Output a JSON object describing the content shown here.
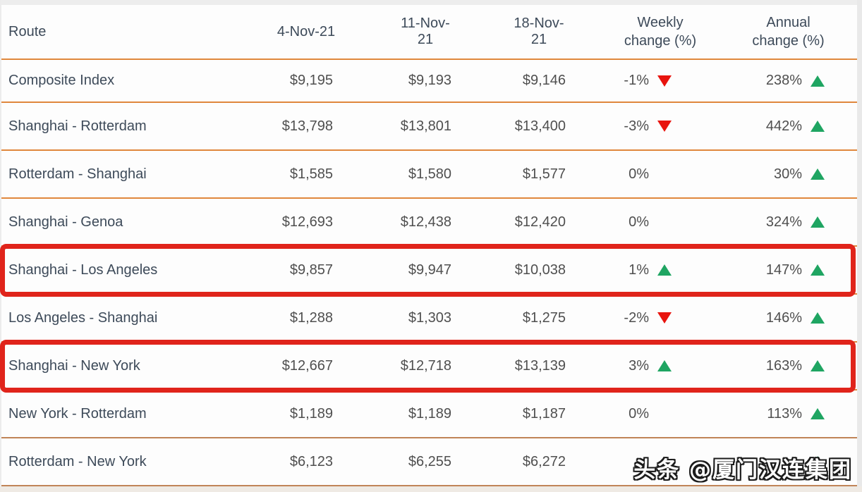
{
  "table": {
    "headers": {
      "route": "Route",
      "d1": "4-Nov-21",
      "d2": "11-Nov-21",
      "d3": "18-Nov-21",
      "weekly_line1": "Weekly",
      "weekly_line2": "change (%)",
      "annual_line1": "Annual",
      "annual_line2": "change (%)"
    },
    "rows": [
      {
        "route": "Composite Index",
        "v1": "$9,195",
        "v2": "$9,193",
        "v3": "$9,146",
        "weekly": "-1%",
        "weekly_dir": "down",
        "annual": "238%",
        "annual_dir": "up",
        "highlighted": false
      },
      {
        "route": "Shanghai - Rotterdam",
        "v1": "$13,798",
        "v2": "$13,801",
        "v3": "$13,400",
        "weekly": "-3%",
        "weekly_dir": "down",
        "annual": "442%",
        "annual_dir": "up",
        "highlighted": false
      },
      {
        "route": "Rotterdam - Shanghai",
        "v1": "$1,585",
        "v2": "$1,580",
        "v3": "$1,577",
        "weekly": "0%",
        "weekly_dir": "none",
        "annual": "30%",
        "annual_dir": "up",
        "highlighted": false
      },
      {
        "route": "Shanghai - Genoa",
        "v1": "$12,693",
        "v2": "$12,438",
        "v3": "$12,420",
        "weekly": "0%",
        "weekly_dir": "none",
        "annual": "324%",
        "annual_dir": "up",
        "highlighted": false
      },
      {
        "route": "Shanghai - Los Angeles",
        "v1": "$9,857",
        "v2": "$9,947",
        "v3": "$10,038",
        "weekly": "1%",
        "weekly_dir": "up",
        "annual": "147%",
        "annual_dir": "up",
        "highlighted": true
      },
      {
        "route": "Los Angeles - Shanghai",
        "v1": "$1,288",
        "v2": "$1,303",
        "v3": "$1,275",
        "weekly": "-2%",
        "weekly_dir": "down",
        "annual": "146%",
        "annual_dir": "up",
        "highlighted": false
      },
      {
        "route": "Shanghai - New York",
        "v1": "$12,667",
        "v2": "$12,718",
        "v3": "$13,139",
        "weekly": "3%",
        "weekly_dir": "up",
        "annual": "163%",
        "annual_dir": "up",
        "highlighted": true
      },
      {
        "route": "New York - Rotterdam",
        "v1": "$1,189",
        "v2": "$1,189",
        "v3": "$1,187",
        "weekly": "0%",
        "weekly_dir": "none",
        "annual": "113%",
        "annual_dir": "up",
        "highlighted": false
      },
      {
        "route": "Rotterdam - New York",
        "v1": "$6,123",
        "v2": "$6,255",
        "v3": "$6,272",
        "weekly": "",
        "weekly_dir": "none",
        "annual": "",
        "annual_dir": "up",
        "highlighted": false
      }
    ]
  },
  "watermark": {
    "text": "头条 @厦门汉连集团"
  },
  "colors": {
    "divider_orange": "#e0873c",
    "divider_brown": "#c08457",
    "highlight_red": "#e0241b",
    "triangle_up_green": "#1fa562",
    "triangle_down_red": "#e8140e",
    "header_text": "#3d4a59",
    "value_text": "#4f4f4f"
  },
  "chart_data": {
    "type": "table",
    "title": "Container freight rates by route",
    "columns": [
      "Route",
      "4-Nov-21",
      "11-Nov-21",
      "18-Nov-21",
      "Weekly change (%)",
      "Annual change (%)"
    ],
    "rows": [
      [
        "Composite Index",
        9195,
        9193,
        9146,
        "-1%",
        "238%"
      ],
      [
        "Shanghai - Rotterdam",
        13798,
        13801,
        13400,
        "-3%",
        "442%"
      ],
      [
        "Rotterdam - Shanghai",
        1585,
        1580,
        1577,
        "0%",
        "30%"
      ],
      [
        "Shanghai - Genoa",
        12693,
        12438,
        12420,
        "0%",
        "324%"
      ],
      [
        "Shanghai - Los Angeles",
        9857,
        9947,
        10038,
        "1%",
        "147%"
      ],
      [
        "Los Angeles - Shanghai",
        1288,
        1303,
        1275,
        "-2%",
        "146%"
      ],
      [
        "Shanghai - New York",
        12667,
        12718,
        13139,
        "3%",
        "163%"
      ],
      [
        "New York - Rotterdam",
        1189,
        1189,
        1187,
        "0%",
        "113%"
      ],
      [
        "Rotterdam - New York",
        6123,
        6255,
        6272,
        null,
        null
      ]
    ],
    "highlighted_rows": [
      "Shanghai - Los Angeles",
      "Shanghai - New York"
    ]
  }
}
